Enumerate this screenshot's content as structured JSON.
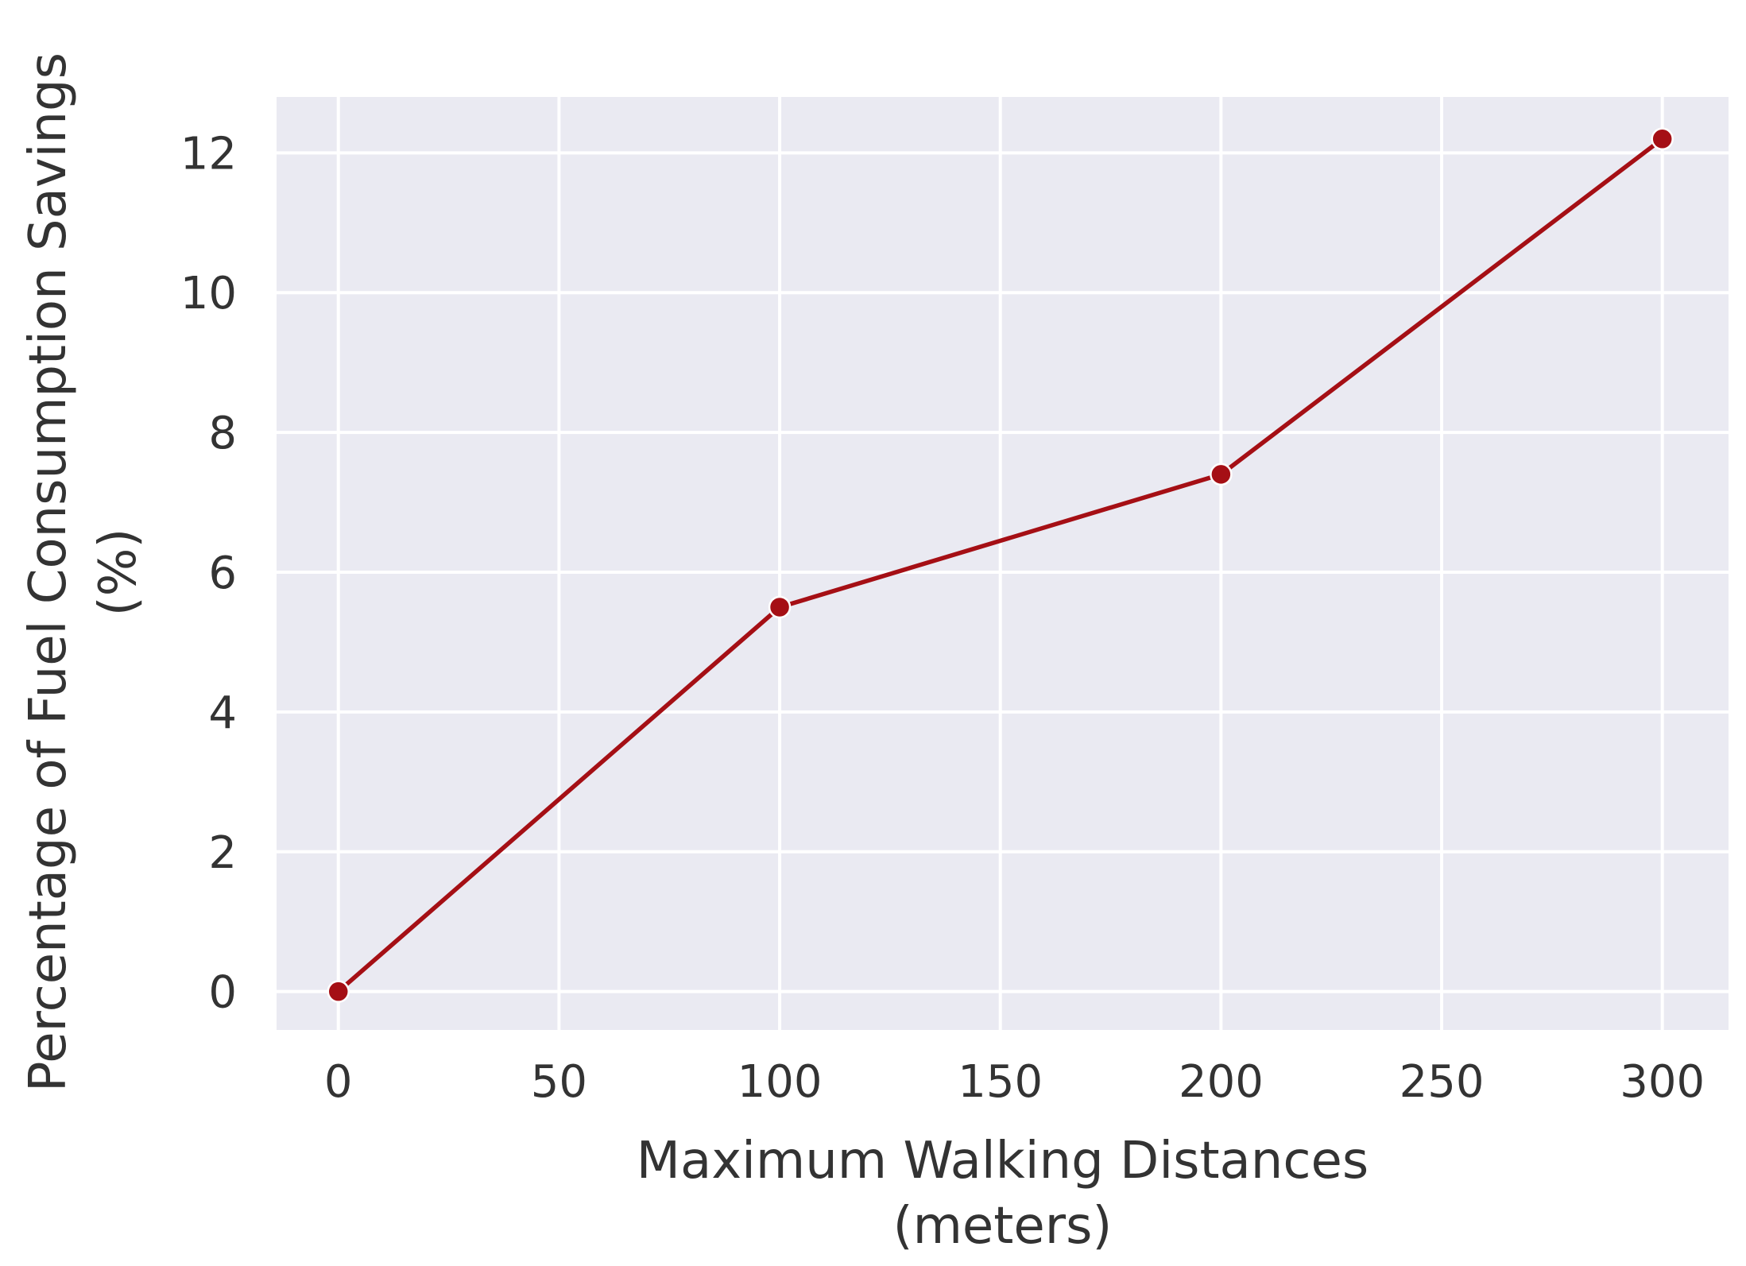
{
  "chart_data": {
    "type": "line",
    "title": "",
    "xlabel": [
      "Maximum Walking Distances",
      "(meters)"
    ],
    "ylabel": [
      "Percentage of Fuel Consumption Savings",
      "(%)"
    ],
    "x": [
      0,
      100,
      200,
      300
    ],
    "series": [
      {
        "values": [
          0,
          5.5,
          7.4,
          12.2
        ],
        "color": "#a50f15"
      }
    ],
    "xlim": [
      -14,
      315
    ],
    "ylim": [
      -0.55,
      12.8
    ],
    "xticks": [
      0,
      50,
      100,
      150,
      200,
      250,
      300
    ],
    "yticks": [
      0,
      2,
      4,
      6,
      8,
      10,
      12
    ],
    "grid": true,
    "legend": "none",
    "colors": {
      "plot_background": "#eaeaf2",
      "grid": "#ffffff",
      "text": "#333333",
      "line": "#a50f15"
    }
  }
}
